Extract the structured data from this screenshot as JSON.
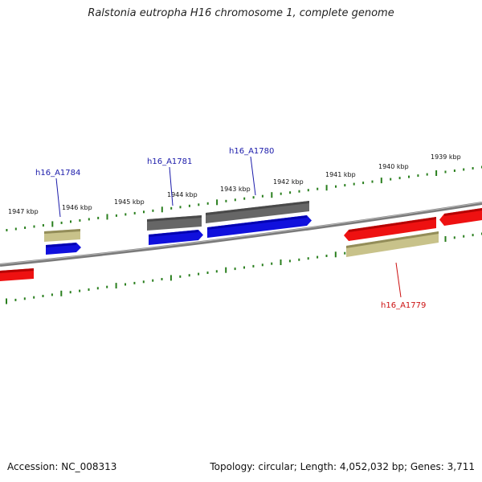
{
  "title": "Ralstonia eutropha H16 chromosome 1, complete genome",
  "footer": {
    "accession": "Accession: NC_008313",
    "summary": "Topology: circular; Length: 4,052,032 bp; Genes: 3,711"
  },
  "colors": {
    "backbone": "#7a7a7a",
    "tick": "#2a7f1e",
    "forward_gene": "#1010dd",
    "reverse_gene": "#ee1111",
    "cds_annotation": "#c8c28a",
    "gray_feature": "#666666",
    "label_forward": "#1a1aaa",
    "label_reverse": "#cc1111"
  },
  "scale": {
    "unit": "kbp",
    "tick_labels": [
      "1939 kbp",
      "1940 kbp",
      "1941 kbp",
      "1942 kbp",
      "1943 kbp",
      "1944 kbp",
      "1945 kbp",
      "1946 kbp",
      "1947 kbp"
    ]
  },
  "gene_labels": [
    {
      "id": "h16_A1784",
      "color": "#1a1aaa"
    },
    {
      "id": "h16_A1781",
      "color": "#1a1aaa"
    },
    {
      "id": "h16_A1780",
      "color": "#1a1aaa"
    },
    {
      "id": "h16_A1779",
      "color": "#cc1111"
    }
  ]
}
